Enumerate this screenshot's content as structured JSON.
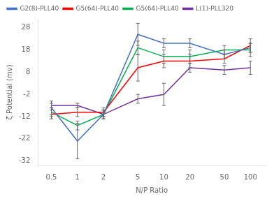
{
  "chart_data": {
    "type": "line",
    "xlabel": "N/P Ratio",
    "ylabel": "ζ Potential (mv)",
    "x": [
      0.5,
      1,
      2,
      5,
      10,
      20,
      50,
      100
    ],
    "series": [
      {
        "name": "G2(8)-PLL40",
        "color": "#4472C4",
        "values": [
          -8,
          -23,
          -11,
          25,
          21,
          21,
          16,
          19
        ],
        "yerr": [
          3,
          8,
          2,
          5,
          2,
          2,
          2,
          2
        ]
      },
      {
        "name": "G5(64)-PLL40",
        "color": "#FF0000",
        "values": [
          -11,
          -10,
          -10,
          10,
          13,
          13,
          14,
          20
        ],
        "yerr": [
          2,
          2,
          2,
          6,
          3,
          3,
          2,
          3
        ]
      },
      {
        "name": "G5(64)-PLL40",
        "color": "#00B050",
        "values": [
          -10,
          -16,
          -11,
          19,
          15,
          15,
          18,
          18
        ],
        "yerr": [
          2,
          2,
          2,
          3,
          3,
          3,
          2,
          3
        ]
      },
      {
        "name": "L(1)-PLL320",
        "color": "#7030A0",
        "values": [
          -7,
          -7,
          -11,
          -4,
          -2,
          10,
          9,
          10
        ],
        "yerr": [
          1,
          1,
          1,
          2,
          5,
          2,
          2,
          3
        ]
      }
    ],
    "log": "x",
    "xlim": [
      0.35,
      150
    ],
    "xticks": [
      0.5,
      1,
      2,
      5,
      10,
      20,
      50,
      100
    ],
    "ylim": [
      -34,
      32
    ],
    "yticks": [
      -32,
      -22,
      -12,
      -2,
      8,
      18,
      28
    ],
    "grid": false,
    "legend": "upper left"
  }
}
